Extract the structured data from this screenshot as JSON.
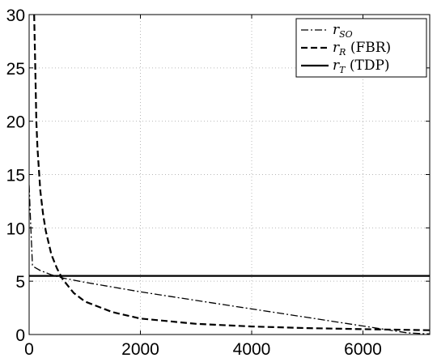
{
  "chart_data": {
    "type": "line",
    "title": "",
    "xlabel": "",
    "ylabel": "",
    "xlim": [
      0,
      7200
    ],
    "ylim": [
      0,
      30
    ],
    "xticks": [
      0,
      2000,
      4000,
      6000
    ],
    "xtick_labels": [
      "0",
      "2000",
      "4000",
      "6000"
    ],
    "yticks": [
      0,
      5,
      10,
      15,
      20,
      25,
      30
    ],
    "ytick_labels": [
      "0",
      "5",
      "10",
      "15",
      "20",
      "25",
      "30"
    ],
    "grid": true,
    "legend_position": "top-right",
    "series": [
      {
        "name": "r_SO",
        "legend": {
          "symbol": "r",
          "subscript": "SO",
          "suffix": ""
        },
        "line_style": "dash-dot",
        "color": "#000000",
        "x": [
          0,
          30,
          60,
          100,
          200,
          400,
          600,
          1000,
          2000,
          3000,
          4000,
          5000,
          6000,
          6800,
          7200
        ],
        "y": [
          14,
          10,
          6.5,
          6.3,
          6.0,
          5.6,
          5.3,
          4.9,
          4.0,
          3.2,
          2.4,
          1.6,
          0.8,
          0.15,
          0.05
        ]
      },
      {
        "name": "r_R (FBR)",
        "legend": {
          "symbol": "r",
          "subscript": "R",
          "suffix": " (FBR)"
        },
        "line_style": "dashed",
        "color": "#000000",
        "x": [
          90,
          110,
          130,
          150,
          200,
          250,
          300,
          400,
          500,
          600,
          800,
          1000,
          1500,
          2000,
          3000,
          4000,
          5000,
          6000,
          7000,
          7200
        ],
        "y": [
          30,
          25,
          20,
          17.5,
          13.5,
          11.3,
          9.7,
          7.5,
          6.2,
          5.2,
          3.9,
          3.1,
          2.1,
          1.5,
          1.0,
          0.75,
          0.6,
          0.5,
          0.42,
          0.4
        ]
      },
      {
        "name": "r_T (TDP)",
        "legend": {
          "symbol": "r",
          "subscript": "T",
          "suffix": " (TDP)"
        },
        "line_style": "solid",
        "color": "#000000",
        "x": [
          0,
          7200
        ],
        "y": [
          5.5,
          5.5
        ]
      }
    ]
  }
}
